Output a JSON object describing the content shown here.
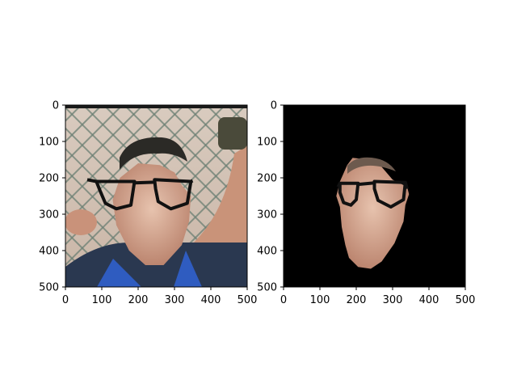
{
  "chart_data": [
    {
      "type": "image",
      "title": "",
      "xlabel": "",
      "ylabel": "",
      "xlim": [
        0,
        500
      ],
      "ylim": [
        500,
        0
      ],
      "xticks": [
        0,
        100,
        200,
        300,
        400,
        500
      ],
      "yticks": [
        0,
        100,
        200,
        300,
        400,
        500
      ],
      "content": "photo of a man wearing drawn-on black glasses in front of a chain-link fence",
      "background": "photo",
      "glasses": {
        "left_lens_points": [
          [
            85,
            210
          ],
          [
            190,
            210
          ],
          [
            180,
            275
          ],
          [
            140,
            285
          ],
          [
            110,
            270
          ],
          [
            95,
            235
          ]
        ],
        "right_lens_points": [
          [
            245,
            205
          ],
          [
            345,
            210
          ],
          [
            335,
            270
          ],
          [
            290,
            285
          ],
          [
            255,
            265
          ],
          [
            248,
            230
          ]
        ],
        "bridge": [
          [
            190,
            214
          ],
          [
            245,
            212
          ]
        ],
        "left_temple": [
          [
            85,
            210
          ],
          [
            60,
            205
          ]
        ],
        "right_temple": [
          [
            345,
            210
          ],
          [
            350,
            208
          ]
        ]
      },
      "face_region_points": [
        [
          200,
          160
        ],
        [
          260,
          165
        ],
        [
          300,
          185
        ],
        [
          320,
          220
        ],
        [
          345,
          250
        ],
        [
          340,
          320
        ],
        [
          320,
          385
        ],
        [
          270,
          440
        ],
        [
          220,
          440
        ],
        [
          175,
          400
        ],
        [
          140,
          330
        ],
        [
          130,
          260
        ],
        [
          150,
          200
        ]
      ]
    },
    {
      "type": "image",
      "title": "",
      "xlabel": "",
      "ylabel": "",
      "xlim": [
        0,
        500
      ],
      "ylim": [
        500,
        0
      ],
      "xticks": [
        0,
        100,
        200,
        300,
        400,
        500
      ],
      "yticks": [
        0,
        100,
        200,
        300,
        400,
        500
      ],
      "content": "segmented face with glasses on black background",
      "background": "#000000",
      "glasses": {
        "left_lens_points": [
          [
            155,
            215
          ],
          [
            205,
            215
          ],
          [
            200,
            260
          ],
          [
            185,
            275
          ],
          [
            165,
            268
          ],
          [
            155,
            240
          ]
        ],
        "right_lens_points": [
          [
            250,
            210
          ],
          [
            335,
            213
          ],
          [
            330,
            260
          ],
          [
            295,
            280
          ],
          [
            260,
            262
          ],
          [
            250,
            230
          ]
        ],
        "bridge": [
          [
            205,
            218
          ],
          [
            250,
            214
          ]
        ],
        "left_temple": [
          [
            155,
            215
          ],
          [
            150,
            225
          ]
        ],
        "right_temple": [
          [
            335,
            213
          ],
          [
            340,
            230
          ]
        ]
      },
      "face_region_points": [
        [
          190,
          145
        ],
        [
          235,
          150
        ],
        [
          270,
          170
        ],
        [
          300,
          205
        ],
        [
          340,
          225
        ],
        [
          345,
          245
        ],
        [
          335,
          275
        ],
        [
          330,
          320
        ],
        [
          305,
          380
        ],
        [
          270,
          430
        ],
        [
          240,
          450
        ],
        [
          205,
          445
        ],
        [
          180,
          420
        ],
        [
          170,
          385
        ],
        [
          160,
          335
        ],
        [
          155,
          280
        ],
        [
          145,
          250
        ],
        [
          155,
          210
        ],
        [
          175,
          165
        ]
      ]
    }
  ]
}
